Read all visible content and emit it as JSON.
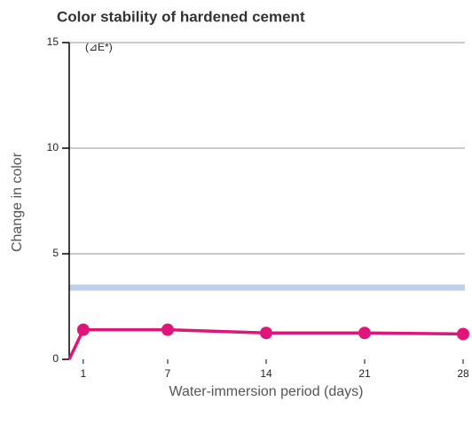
{
  "chart_data": {
    "type": "line",
    "title": "Color stability of hardened cement",
    "unit_label": "(⊿E*)",
    "xlabel": "Water-immersion period (days)",
    "ylabel": "Change in color",
    "x": [
      0,
      1,
      7,
      14,
      21,
      28
    ],
    "series": [
      {
        "color": "#e0157a",
        "values": [
          0,
          1.4,
          1.4,
          1.25,
          1.25,
          1.2
        ]
      }
    ],
    "reference_band": {
      "value": 3.4,
      "color": "#bfd1ea"
    },
    "xlim": [
      0,
      28
    ],
    "xticks": [
      1,
      7,
      14,
      21,
      28
    ],
    "ylim": [
      0,
      15
    ],
    "yticks": [
      0,
      5,
      10,
      15
    ],
    "grid": true
  }
}
